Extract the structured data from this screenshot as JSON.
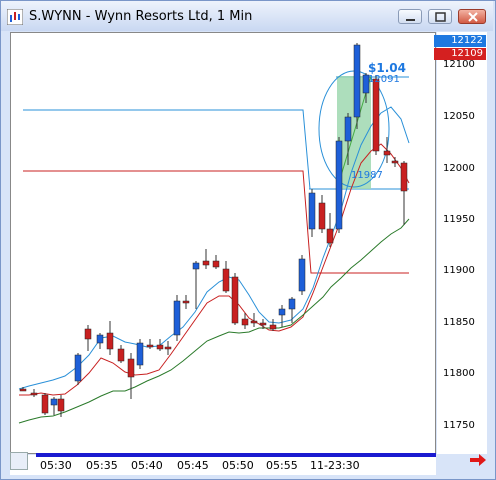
{
  "window": {
    "title": "S.WYNN - Wynn Resorts Ltd, 1 Min"
  },
  "price_axis": {
    "ticks": [
      "12100",
      "12050",
      "12000",
      "11950",
      "11900",
      "11850",
      "11800",
      "11750"
    ],
    "tag_top": {
      "label": "12122",
      "color": "#1e78e0"
    },
    "tag_bottom": {
      "label": "12109",
      "color": "#d42020"
    }
  },
  "time_axis": {
    "labels": [
      "05:30",
      "05:35",
      "05:40",
      "05:45",
      "05:50",
      "05:55",
      "11-23:30"
    ]
  },
  "annotations": {
    "gain_label": "$1.04",
    "top_price_label": "12091",
    "bottom_price_label": "11987"
  },
  "colors": {
    "up": "#1e5fd8",
    "down": "#c82020",
    "band_upper": "#2a90d8",
    "band_lower": "#2a7a2a",
    "signal_line": "#c82020"
  }
}
